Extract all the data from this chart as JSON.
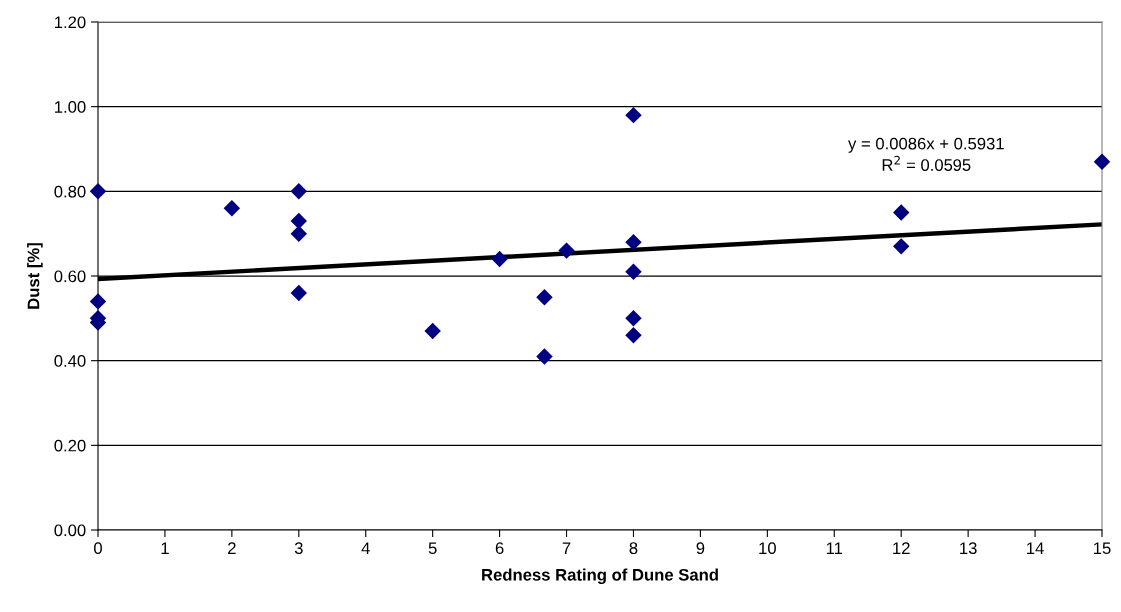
{
  "chart_data": {
    "type": "scatter",
    "xlabel": "Redness Rating of Dune Sand",
    "ylabel": "Dust [%]",
    "xlim": [
      0,
      15
    ],
    "xticks": [
      0,
      1,
      2,
      3,
      4,
      5,
      6,
      7,
      8,
      9,
      10,
      11,
      12,
      13,
      14,
      15
    ],
    "ylim": [
      0,
      1.2
    ],
    "yticks": [
      {
        "value": 0,
        "label": "0.00"
      },
      {
        "value": 0.2,
        "label": "0.20"
      },
      {
        "value": 0.4,
        "label": "0.40"
      },
      {
        "value": 0.6,
        "label": "0.60"
      },
      {
        "value": 0.8,
        "label": "0.80"
      },
      {
        "value": 1.0,
        "label": "1.00"
      },
      {
        "value": 1.2,
        "label": "1.20"
      }
    ],
    "grid": "y",
    "marker": "diamond",
    "series": [
      {
        "color": "#000080",
        "x": [
          0,
          0,
          0,
          0,
          2,
          3,
          3,
          3,
          3,
          5,
          6,
          6.67,
          6.67,
          7,
          8,
          8,
          8,
          8,
          8,
          12,
          12,
          15
        ],
        "values": [
          0.8,
          0.54,
          0.49,
          0.5,
          0.76,
          0.8,
          0.73,
          0.7,
          0.56,
          0.47,
          0.64,
          0.55,
          0.41,
          0.66,
          0.98,
          0.68,
          0.61,
          0.5,
          0.46,
          0.75,
          0.67,
          0.87
        ]
      },
      {
        "type": "line",
        "color": "#000000",
        "line_style": "solid",
        "marker": "none",
        "x": [
          0,
          15
        ],
        "values": [
          0.593,
          0.722
        ]
      }
    ],
    "annotations": [
      "y = 0.0086x + 0.5931\nR$^{2}$ = 0.0595"
    ]
  }
}
